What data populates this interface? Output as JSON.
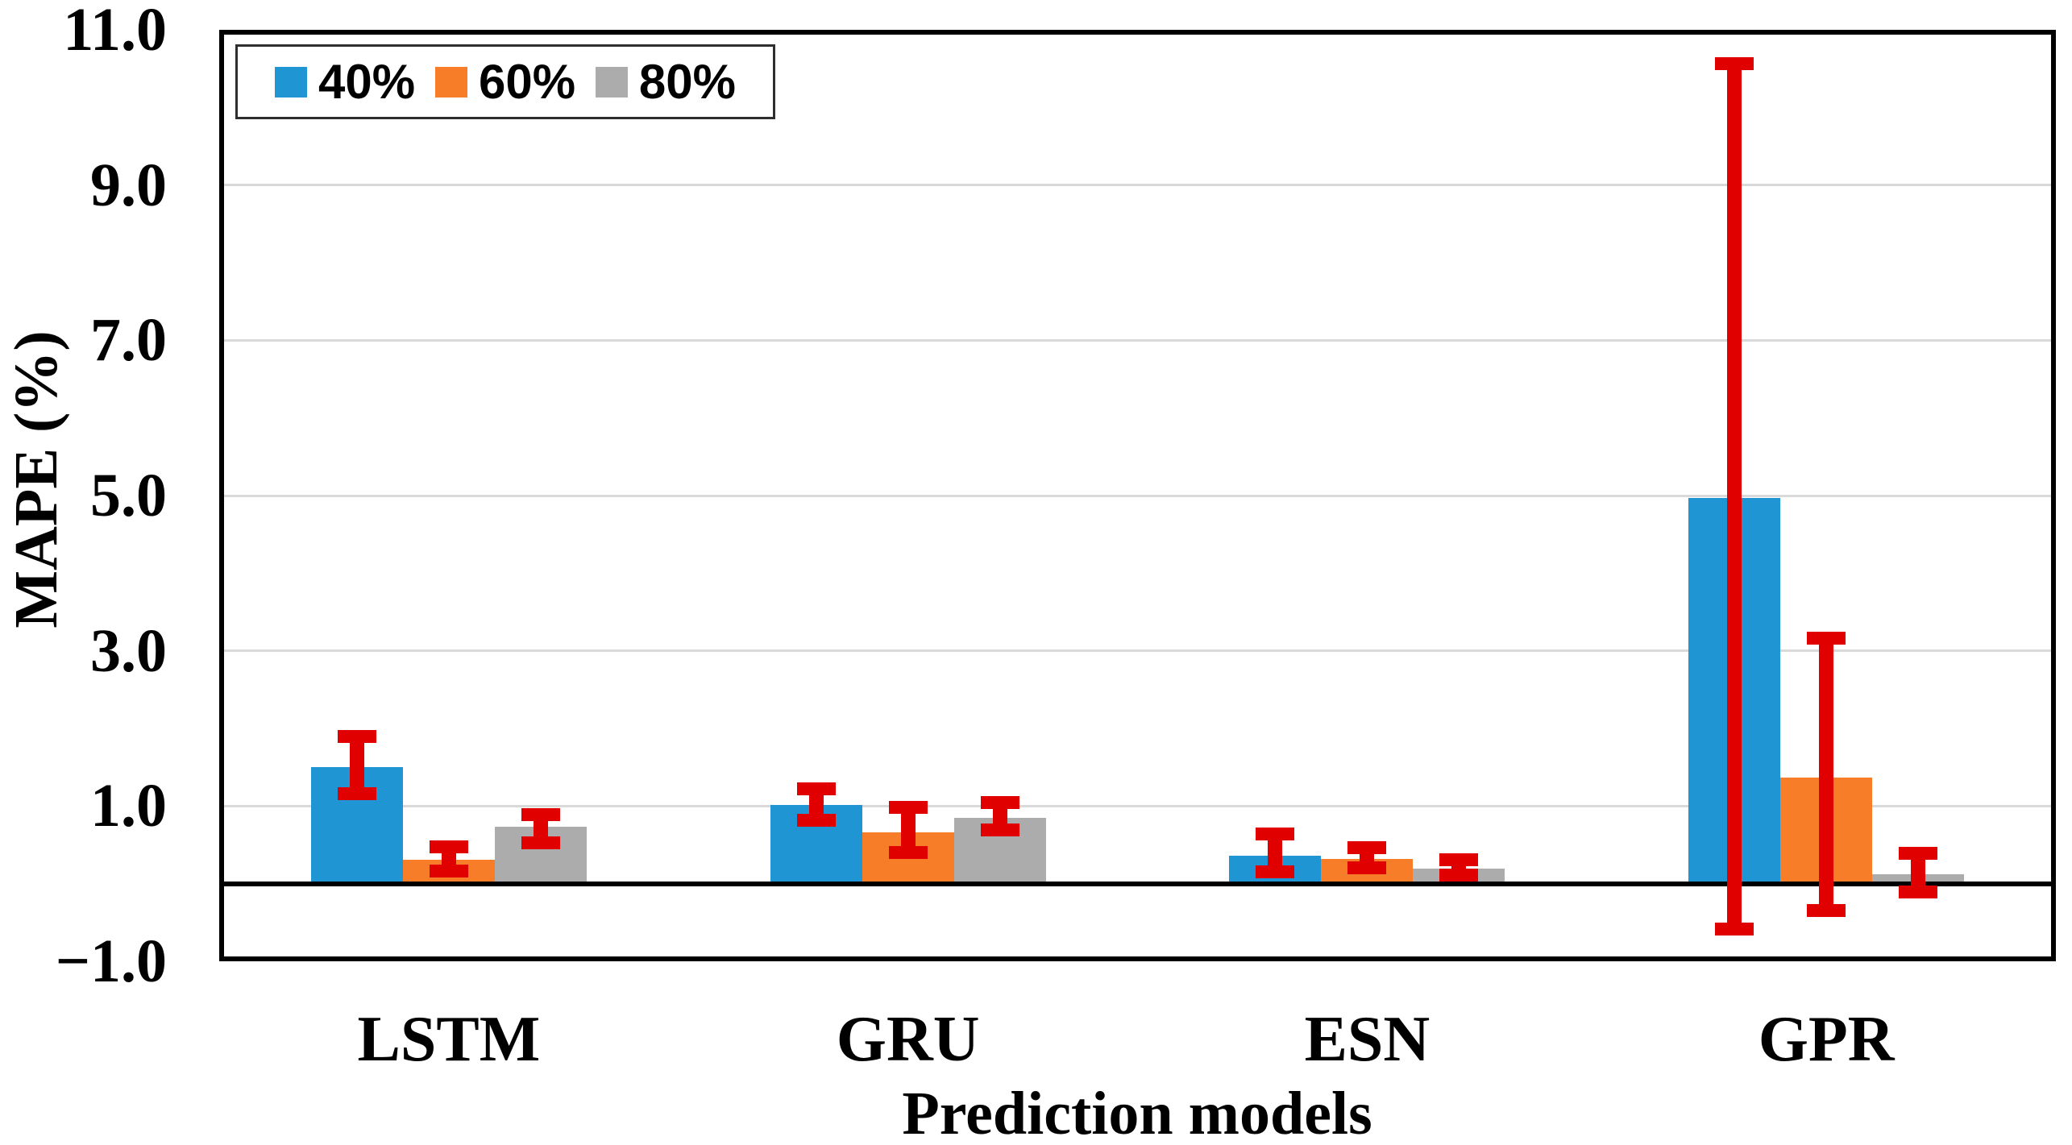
{
  "figure": {
    "background": "#ffffff"
  },
  "chart_data": {
    "type": "bar",
    "title": "",
    "xlabel": "Prediction models",
    "ylabel": "MAPE (%)",
    "categories": [
      "LSTM",
      "GRU",
      "ESN",
      "GPR"
    ],
    "series": [
      {
        "name": "40%",
        "color": "#2095d3",
        "values": [
          1.5,
          1.01,
          0.36,
          4.97
        ],
        "error_low": [
          1.16,
          0.82,
          0.15,
          -0.58
        ],
        "error_high": [
          1.9,
          1.22,
          0.64,
          10.56
        ]
      },
      {
        "name": "60%",
        "color": "#f87d28",
        "values": [
          0.31,
          0.66,
          0.32,
          1.37
        ],
        "error_low": [
          0.16,
          0.4,
          0.2,
          -0.35
        ],
        "error_high": [
          0.47,
          0.98,
          0.46,
          3.16
        ]
      },
      {
        "name": "80%",
        "color": "#acacac",
        "values": [
          0.73,
          0.85,
          0.19,
          0.12
        ],
        "error_low": [
          0.53,
          0.69,
          0.11,
          -0.11
        ],
        "error_high": [
          0.89,
          1.05,
          0.31,
          0.39
        ]
      }
    ],
    "error_bar_color": "#e00000",
    "ylim": [
      -1.0,
      11.0
    ],
    "ytick_values": [
      11,
      9,
      7,
      5,
      3,
      1,
      -1
    ],
    "ytick_labels": [
      "11.0",
      "9.0",
      "7.0",
      "5.0",
      "3.0",
      "1.0",
      "−1.0"
    ],
    "gridline_values": [
      1,
      3,
      5,
      7,
      9
    ],
    "gridline_color": "#d9d9d9",
    "zero_line": true,
    "grid": "horizontal",
    "legend_position": "top-left-inside",
    "legend": [
      "40%",
      "60%",
      "80%"
    ]
  }
}
